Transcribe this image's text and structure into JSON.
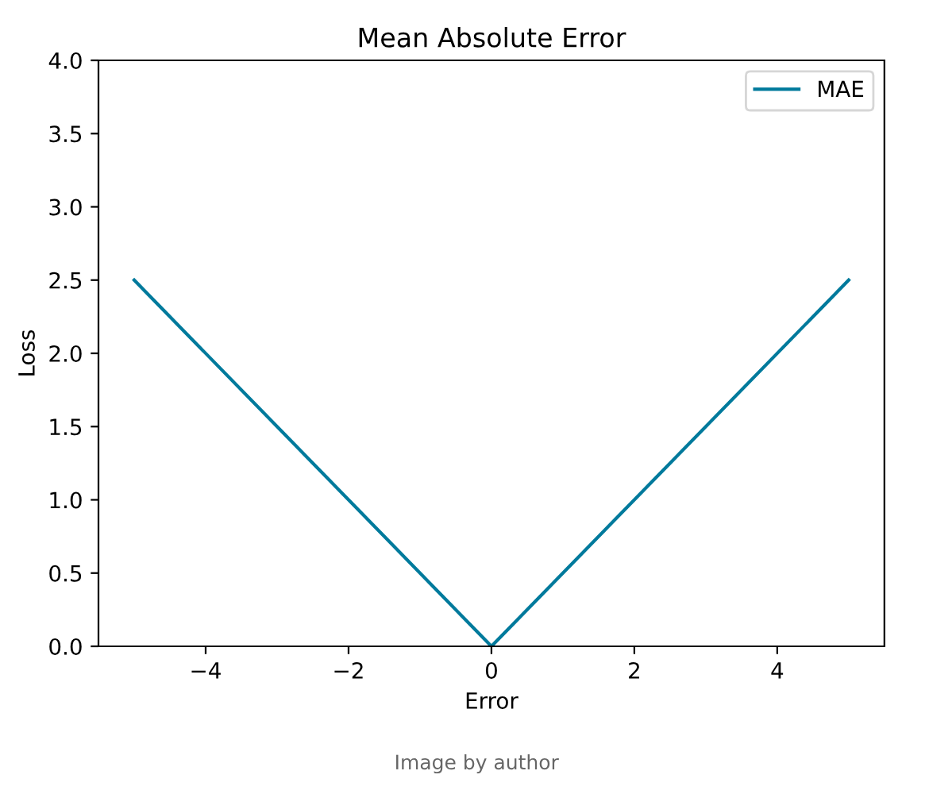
{
  "chart_data": {
    "type": "line",
    "title": "Mean Absolute Error",
    "xlabel": "Error",
    "ylabel": "Loss",
    "x": [
      -5,
      0,
      5
    ],
    "series": [
      {
        "name": "MAE",
        "color": "#007a9c",
        "values": [
          2.5,
          0,
          2.5
        ]
      }
    ],
    "xlim": [
      -5.5,
      5.5
    ],
    "xticks": [
      {
        "value": -4,
        "label": "−4"
      },
      {
        "value": -2,
        "label": "−2"
      },
      0,
      2,
      4
    ],
    "ylim": [
      0,
      4
    ],
    "yticks": [
      {
        "value": 0,
        "label": "0.0"
      },
      {
        "value": 0.5,
        "label": "0.5"
      },
      {
        "value": 1,
        "label": "1.0"
      },
      {
        "value": 1.5,
        "label": "1.5"
      },
      {
        "value": 2,
        "label": "2.0"
      },
      {
        "value": 2.5,
        "label": "2.5"
      },
      {
        "value": 3,
        "label": "3.0"
      },
      {
        "value": 3.5,
        "label": "3.5"
      },
      {
        "value": 4,
        "label": "4.0"
      }
    ],
    "legend": "top right",
    "grid": false,
    "annotations": [
      "Image by author"
    ]
  }
}
